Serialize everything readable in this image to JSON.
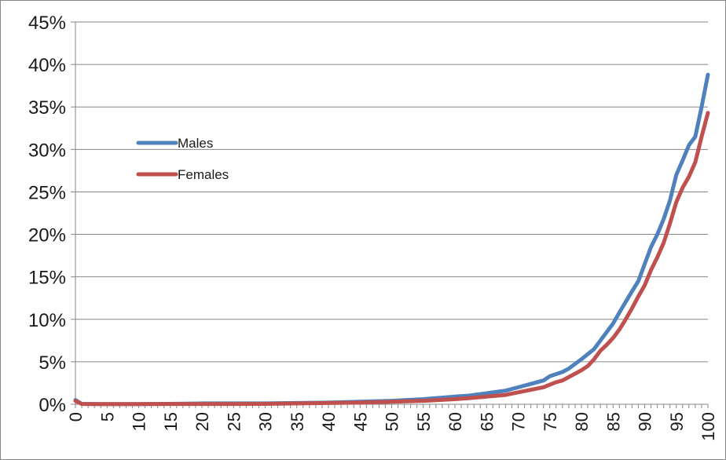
{
  "chart_data": {
    "type": "line",
    "title": "",
    "xlabel": "",
    "ylabel": "",
    "x_range": [
      0,
      100
    ],
    "ylim": [
      0,
      0.45
    ],
    "y_ticks": [
      0,
      0.05,
      0.1,
      0.15,
      0.2,
      0.25,
      0.3,
      0.35,
      0.4,
      0.45
    ],
    "y_tick_labels": [
      "0%",
      "5%",
      "10%",
      "15%",
      "20%",
      "25%",
      "30%",
      "35%",
      "40%",
      "45%"
    ],
    "x_ticks": [
      0,
      5,
      10,
      15,
      20,
      25,
      30,
      35,
      40,
      45,
      50,
      55,
      60,
      65,
      70,
      75,
      80,
      85,
      90,
      95,
      100
    ],
    "x_tick_labels": [
      "0",
      "5",
      "10",
      "15",
      "20",
      "25",
      "30",
      "35",
      "40",
      "45",
      "50",
      "55",
      "60",
      "65",
      "70",
      "75",
      "80",
      "85",
      "90",
      "95",
      "100"
    ],
    "grid": "horizontal",
    "legend_position": "left",
    "series": [
      {
        "name": "Males",
        "color": "#4f81bd",
        "points": [
          [
            0,
            0.005
          ],
          [
            1,
            0.0005
          ],
          [
            5,
            0.0002
          ],
          [
            10,
            0.0002
          ],
          [
            15,
            0.0005
          ],
          [
            20,
            0.001
          ],
          [
            25,
            0.001
          ],
          [
            30,
            0.001
          ],
          [
            35,
            0.0015
          ],
          [
            40,
            0.002
          ],
          [
            45,
            0.003
          ],
          [
            50,
            0.004
          ],
          [
            55,
            0.006
          ],
          [
            60,
            0.009
          ],
          [
            62,
            0.01
          ],
          [
            65,
            0.013
          ],
          [
            68,
            0.016
          ],
          [
            70,
            0.02
          ],
          [
            72,
            0.024
          ],
          [
            74,
            0.028
          ],
          [
            75,
            0.033
          ],
          [
            77,
            0.038
          ],
          [
            78,
            0.042
          ],
          [
            80,
            0.053
          ],
          [
            82,
            0.065
          ],
          [
            84,
            0.085
          ],
          [
            85,
            0.095
          ],
          [
            86,
            0.108
          ],
          [
            88,
            0.133
          ],
          [
            89,
            0.145
          ],
          [
            90,
            0.165
          ],
          [
            91,
            0.185
          ],
          [
            92,
            0.2
          ],
          [
            93,
            0.218
          ],
          [
            94,
            0.24
          ],
          [
            95,
            0.27
          ],
          [
            96,
            0.287
          ],
          [
            97,
            0.305
          ],
          [
            98,
            0.315
          ],
          [
            99,
            0.35
          ],
          [
            100,
            0.388
          ]
        ]
      },
      {
        "name": "Females",
        "color": "#c0504d",
        "points": [
          [
            0,
            0.004
          ],
          [
            1,
            0.0004
          ],
          [
            5,
            0.0002
          ],
          [
            10,
            0.0002
          ],
          [
            15,
            0.0003
          ],
          [
            20,
            0.0004
          ],
          [
            25,
            0.0004
          ],
          [
            30,
            0.0005
          ],
          [
            35,
            0.001
          ],
          [
            40,
            0.0015
          ],
          [
            45,
            0.002
          ],
          [
            50,
            0.003
          ],
          [
            55,
            0.004
          ],
          [
            60,
            0.006
          ],
          [
            62,
            0.007
          ],
          [
            65,
            0.009
          ],
          [
            68,
            0.011
          ],
          [
            70,
            0.014
          ],
          [
            72,
            0.017
          ],
          [
            74,
            0.02
          ],
          [
            75,
            0.023
          ],
          [
            76,
            0.026
          ],
          [
            77,
            0.028
          ],
          [
            80,
            0.04
          ],
          [
            81,
            0.045
          ],
          [
            82,
            0.053
          ],
          [
            83,
            0.063
          ],
          [
            84,
            0.07
          ],
          [
            85,
            0.078
          ],
          [
            86,
            0.088
          ],
          [
            87,
            0.1
          ],
          [
            88,
            0.113
          ],
          [
            89,
            0.127
          ],
          [
            90,
            0.14
          ],
          [
            91,
            0.158
          ],
          [
            92,
            0.173
          ],
          [
            93,
            0.19
          ],
          [
            94,
            0.213
          ],
          [
            95,
            0.238
          ],
          [
            96,
            0.255
          ],
          [
            97,
            0.268
          ],
          [
            98,
            0.285
          ],
          [
            99,
            0.315
          ],
          [
            100,
            0.343
          ]
        ]
      }
    ]
  }
}
